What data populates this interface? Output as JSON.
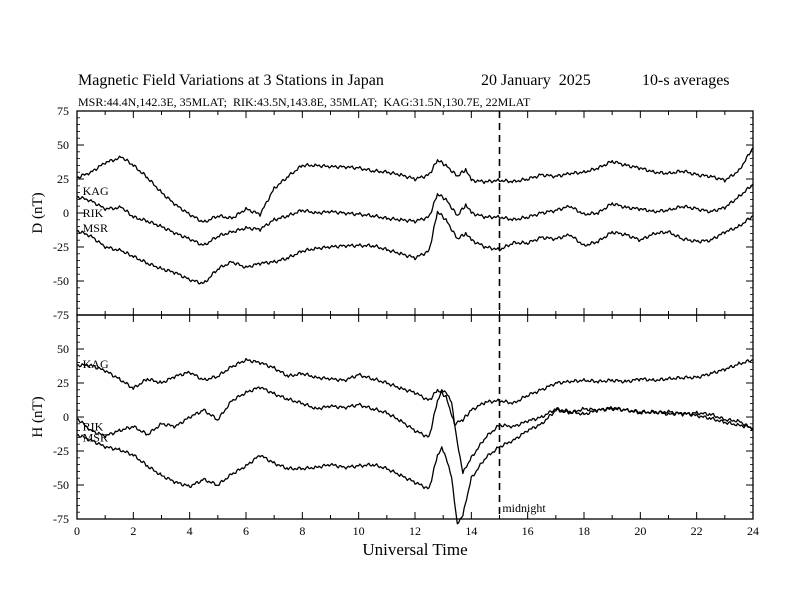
{
  "header": {
    "title": "Magnetic Field Variations at 3 Stations in Japan",
    "date": "20 January  2025",
    "averaging": "10-s averages",
    "stations": "MSR:44.4N,142.3E, 35MLAT;  RIK:43.5N,143.8E, 35MLAT;  KAG:31.5N,130.7E, 22MLAT"
  },
  "colors": {
    "line": "#000000",
    "background": "#ffffff"
  },
  "chart_data": [
    {
      "type": "line",
      "panel": "D",
      "ylabel": "D (nT)",
      "xlabel": "",
      "xlim": [
        0,
        24
      ],
      "ylim": [
        -75,
        75
      ],
      "yticks": [
        -75,
        -50,
        -25,
        0,
        25,
        50,
        75
      ],
      "ytick_labels": [
        "-75",
        "-50",
        "-25",
        "0",
        "25",
        "50",
        "75"
      ],
      "grid": false,
      "midnight_marker_ut": 15,
      "series": [
        {
          "name": "KAG",
          "label_at": [
            0.2,
            16
          ],
          "x": [
            0,
            0.5,
            1,
            1.6,
            2,
            2.5,
            3,
            3.5,
            4,
            4.5,
            5,
            5.5,
            6,
            6.5,
            7,
            7.5,
            8,
            8.5,
            9,
            9.5,
            10,
            10.5,
            11,
            11.5,
            12,
            12.5,
            12.8,
            13.1,
            13.5,
            13.8,
            14,
            14.5,
            15,
            15.5,
            16,
            16.5,
            17,
            17.5,
            18,
            18.5,
            19,
            19.5,
            20,
            20.5,
            21,
            21.5,
            22,
            22.5,
            23,
            23.5,
            24
          ],
          "y": [
            26,
            30,
            37,
            41,
            35,
            26,
            15,
            6,
            -1,
            -7,
            -2,
            -4,
            3,
            -1,
            18,
            27,
            35,
            35,
            34,
            34,
            33,
            31,
            30,
            28,
            25,
            28,
            39,
            35,
            27,
            32,
            24,
            23,
            24,
            23,
            25,
            28,
            27,
            29,
            30,
            33,
            38,
            35,
            33,
            30,
            29,
            31,
            28,
            27,
            24,
            31,
            48
          ]
        },
        {
          "name": "RIK",
          "label_at": [
            0.2,
            0
          ],
          "x": [
            0,
            0.5,
            1,
            1.6,
            2,
            2.5,
            3,
            3.5,
            4,
            4.5,
            5,
            5.5,
            6,
            6.5,
            7,
            7.5,
            8,
            8.5,
            9,
            9.5,
            10,
            10.5,
            11,
            11.5,
            12,
            12.5,
            12.8,
            13.1,
            13.5,
            13.8,
            14,
            14.5,
            15,
            15.5,
            16,
            16.5,
            17,
            17.5,
            18,
            18.5,
            19,
            19.5,
            20,
            20.5,
            21,
            21.5,
            22,
            22.5,
            23,
            23.5,
            24
          ],
          "y": [
            12,
            9,
            3,
            4,
            -3,
            -6,
            -10,
            -15,
            -19,
            -24,
            -17,
            -14,
            -11,
            -12,
            -5,
            -2,
            2,
            0,
            1,
            0,
            -1,
            -2,
            -4,
            -5,
            -6,
            -3,
            14,
            10,
            -2,
            6,
            0,
            -3,
            -3,
            -5,
            -3,
            0,
            2,
            5,
            -1,
            0,
            7,
            4,
            3,
            1,
            2,
            5,
            3,
            1,
            4,
            12,
            21
          ]
        },
        {
          "name": "MSR",
          "label_at": [
            0.2,
            -11
          ],
          "x": [
            0,
            0.5,
            1,
            1.6,
            2,
            2.5,
            3,
            3.5,
            4,
            4.5,
            5,
            5.5,
            6,
            6.5,
            7,
            7.5,
            8,
            8.5,
            9,
            9.5,
            10,
            10.5,
            11,
            11.5,
            12,
            12.5,
            12.8,
            13.1,
            13.5,
            13.8,
            14,
            14.5,
            15,
            15.5,
            16,
            16.5,
            17,
            17.5,
            18,
            18.5,
            19,
            19.5,
            20,
            20.5,
            21,
            21.5,
            22,
            22.5,
            23,
            23.5,
            24
          ],
          "y": [
            -13,
            -17,
            -25,
            -28,
            -32,
            -37,
            -41,
            -44,
            -49,
            -52,
            -41,
            -36,
            -40,
            -37,
            -36,
            -33,
            -28,
            -26,
            -25,
            -24,
            -24,
            -24,
            -27,
            -30,
            -33,
            -28,
            1,
            -5,
            -19,
            -15,
            -20,
            -25,
            -27,
            -22,
            -22,
            -18,
            -19,
            -16,
            -24,
            -21,
            -14,
            -16,
            -20,
            -15,
            -14,
            -19,
            -21,
            -20,
            -14,
            -10,
            -2
          ]
        }
      ]
    },
    {
      "type": "line",
      "panel": "H",
      "ylabel": "H (nT)",
      "xlabel": "Universal Time",
      "xlim": [
        0,
        24
      ],
      "ylim": [
        -75,
        75
      ],
      "xticks": [
        0,
        2,
        4,
        6,
        8,
        10,
        12,
        14,
        16,
        18,
        20,
        22,
        24
      ],
      "xtick_labels": [
        "0",
        "2",
        "4",
        "6",
        "8",
        "10",
        "12",
        "14",
        "16",
        "18",
        "20",
        "22",
        "24"
      ],
      "yticks": [
        -75,
        -50,
        -25,
        0,
        25,
        50,
        75
      ],
      "ytick_labels": [
        "-75",
        "-50",
        "-25",
        "0",
        "25",
        "50",
        "75"
      ],
      "grid": false,
      "midnight_marker_ut": 15,
      "annotations": [
        {
          "text": "midnight",
          "x": 15.1,
          "y": -70
        }
      ],
      "series": [
        {
          "name": "KAG",
          "label_at": [
            0.2,
            39
          ],
          "x": [
            0,
            0.5,
            1,
            1.5,
            2,
            2.5,
            3,
            3.5,
            4,
            4.5,
            5,
            5.5,
            6,
            6.5,
            7,
            7.5,
            8,
            8.5,
            9,
            9.5,
            10,
            10.5,
            11,
            11.5,
            12,
            12.5,
            12.8,
            13.1,
            13.4,
            13.7,
            14,
            14.5,
            15,
            15.5,
            16,
            16.5,
            17,
            17.5,
            18,
            18.5,
            19,
            19.5,
            20,
            20.5,
            21,
            21.5,
            22,
            22.5,
            23,
            23.5,
            24
          ],
          "y": [
            38,
            38,
            34,
            28,
            21,
            28,
            25,
            30,
            33,
            27,
            30,
            37,
            42,
            40,
            36,
            30,
            32,
            29,
            28,
            27,
            31,
            28,
            25,
            21,
            18,
            12,
            20,
            15,
            -5,
            -2,
            5,
            11,
            12,
            10,
            16,
            20,
            25,
            26,
            27,
            26,
            27,
            26,
            28,
            27,
            28,
            29,
            29,
            32,
            35,
            39,
            42
          ]
        },
        {
          "name": "RIK",
          "label_at": [
            0.2,
            -7
          ],
          "x": [
            0,
            0.5,
            1,
            1.5,
            2,
            2.5,
            3,
            3.5,
            4,
            4.5,
            5,
            5.5,
            6,
            6.5,
            7,
            7.5,
            8,
            8.5,
            9,
            9.5,
            10,
            10.5,
            11,
            11.5,
            12,
            12.5,
            12.8,
            12.95,
            13.1,
            13.3,
            13.5,
            13.7,
            14,
            14.5,
            15,
            15.5,
            16,
            16.5,
            17,
            17.5,
            18,
            18.5,
            19,
            19.5,
            20,
            20.5,
            21,
            21.5,
            22,
            22.5,
            23,
            23.5,
            24
          ],
          "y": [
            -1,
            -10,
            -14,
            -10,
            -7,
            -13,
            -5,
            -7,
            0,
            5,
            -2,
            12,
            18,
            22,
            17,
            13,
            10,
            6,
            8,
            7,
            9,
            6,
            3,
            -3,
            -10,
            -15,
            12,
            20,
            18,
            10,
            -18,
            -41,
            -30,
            -15,
            -6,
            -7,
            -3,
            0,
            6,
            4,
            2,
            5,
            6,
            5,
            4,
            3,
            4,
            2,
            3,
            2,
            -2,
            -3,
            -9
          ]
        },
        {
          "name": "MSR",
          "label_at": [
            0.2,
            -15
          ],
          "x": [
            0,
            0.5,
            1,
            1.5,
            2,
            2.5,
            3,
            3.5,
            4,
            4.5,
            5,
            5.5,
            6,
            6.5,
            7,
            7.5,
            8,
            8.5,
            9,
            9.5,
            10,
            10.5,
            11,
            11.5,
            12,
            12.5,
            12.8,
            12.95,
            13.1,
            13.3,
            13.5,
            13.7,
            14,
            14.5,
            15,
            15.5,
            16,
            16.5,
            17,
            17.5,
            18,
            18.5,
            19,
            19.5,
            20,
            20.5,
            21,
            21.5,
            22,
            22.5,
            23,
            23.5,
            24
          ],
          "y": [
            -13,
            -17,
            -22,
            -24,
            -28,
            -36,
            -43,
            -48,
            -51,
            -46,
            -50,
            -42,
            -36,
            -28,
            -34,
            -38,
            -38,
            -37,
            -35,
            -37,
            -36,
            -35,
            -38,
            -43,
            -48,
            -53,
            -28,
            -22,
            -30,
            -45,
            -78,
            -72,
            -45,
            -30,
            -22,
            -17,
            -10,
            -5,
            5,
            3,
            6,
            5,
            7,
            5,
            3,
            4,
            2,
            3,
            1,
            -1,
            -4,
            -6,
            -8
          ]
        }
      ]
    }
  ]
}
